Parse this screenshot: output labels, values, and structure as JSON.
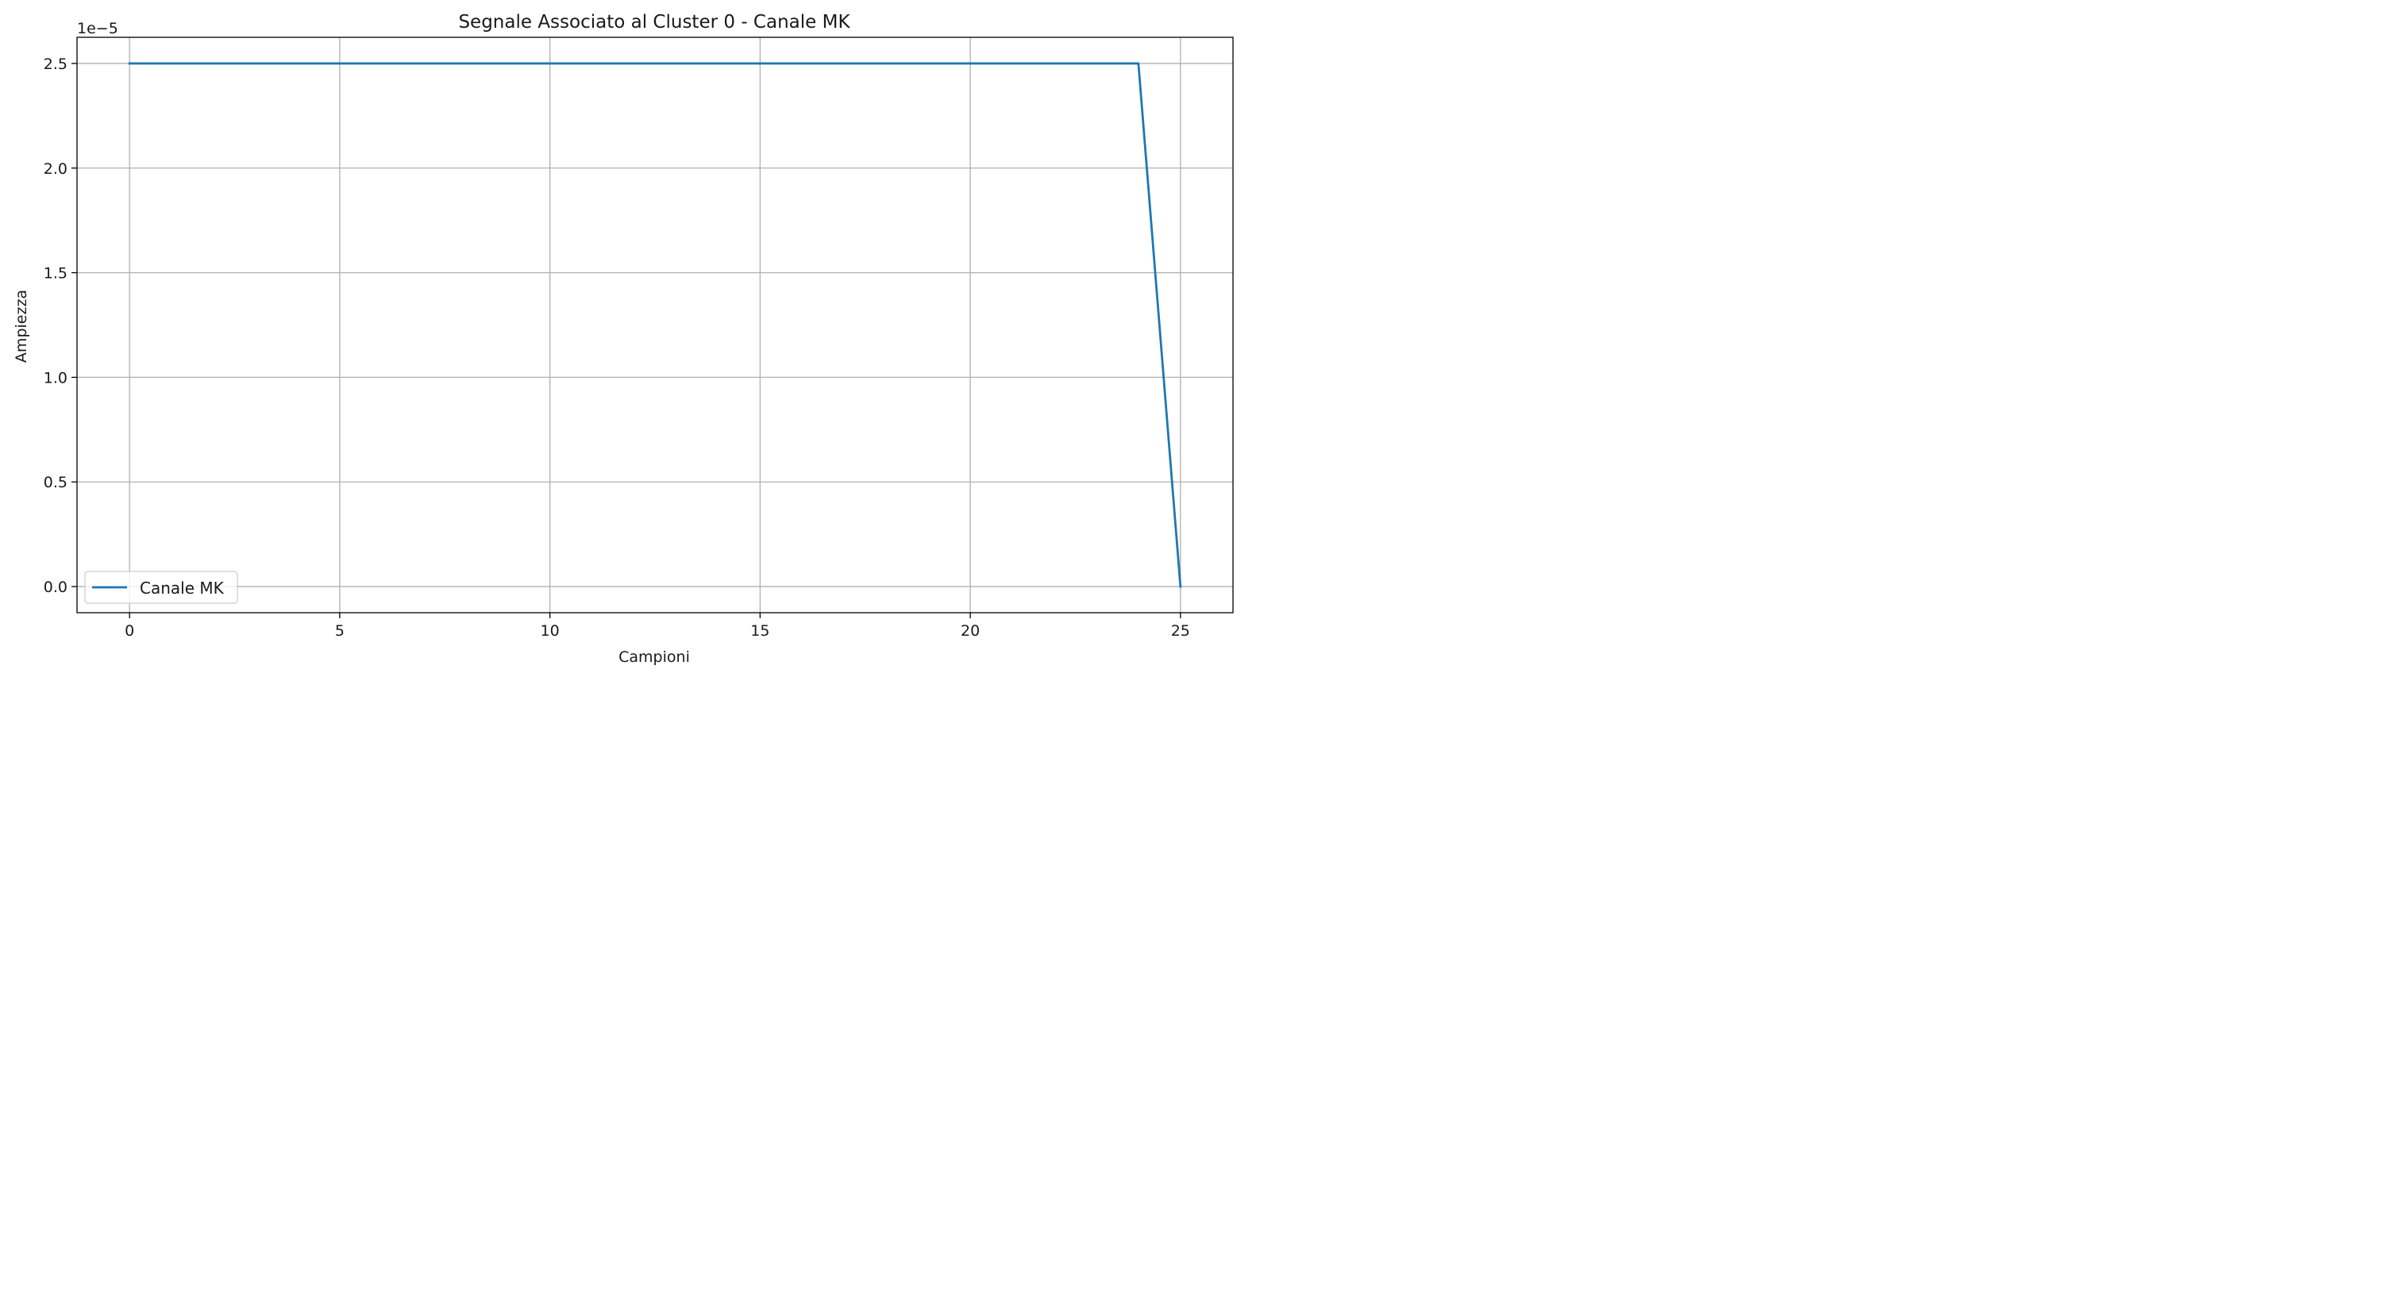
{
  "chart_data": {
    "type": "line",
    "title": "Segnale Associato al Cluster 0 - Canale MK",
    "xlabel": "Campioni",
    "ylabel": "Ampiezza",
    "y_offset_label": "1e−5",
    "x": [
      0,
      1,
      2,
      3,
      4,
      5,
      6,
      7,
      8,
      9,
      10,
      11,
      12,
      13,
      14,
      15,
      16,
      17,
      18,
      19,
      20,
      21,
      22,
      23,
      24,
      25
    ],
    "series": [
      {
        "name": "Canale MK",
        "color": "#1f77b4",
        "values": [
          2.5e-05,
          2.5e-05,
          2.5e-05,
          2.5e-05,
          2.5e-05,
          2.5e-05,
          2.5e-05,
          2.5e-05,
          2.5e-05,
          2.5e-05,
          2.5e-05,
          2.5e-05,
          2.5e-05,
          2.5e-05,
          2.5e-05,
          2.5e-05,
          2.5e-05,
          2.5e-05,
          2.5e-05,
          2.5e-05,
          2.5e-05,
          2.5e-05,
          2.5e-05,
          2.5e-05,
          2.5e-05,
          0
        ]
      }
    ],
    "xlim": [
      -1.25,
      26.25
    ],
    "ylim": [
      -1.25e-06,
      2.625e-05
    ],
    "x_ticks": [
      0,
      5,
      10,
      15,
      20,
      25
    ],
    "x_tick_labels": [
      "0",
      "5",
      "10",
      "15",
      "20",
      "25"
    ],
    "y_ticks": [
      0,
      0.5,
      1.0,
      1.5,
      2.0,
      2.5
    ],
    "y_tick_labels": [
      "0.0",
      "0.5",
      "1.0",
      "1.5",
      "2.0",
      "2.5"
    ],
    "y_tick_scale": 1e-05,
    "grid": true,
    "legend_position": "lower-left",
    "colors": {
      "grid": "#b0b0b0",
      "axes": "#000000",
      "line": "#1f77b4"
    }
  }
}
